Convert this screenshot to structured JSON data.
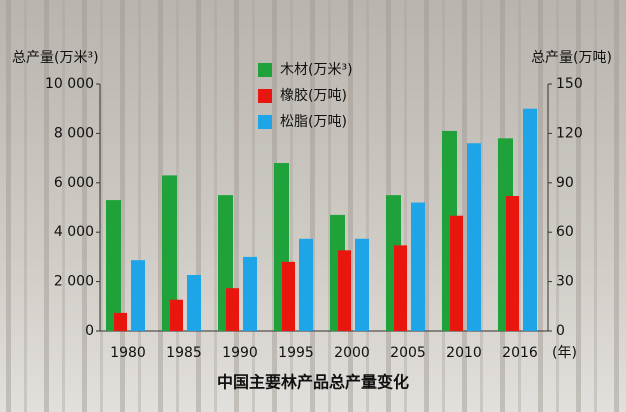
{
  "chart_data": {
    "type": "bar",
    "title": "中国主要林产品总产量变化",
    "y_label": "总产量(万米³)",
    "y2_label": "总产量(万吨)",
    "x_unit": "(年)",
    "categories": [
      "1980",
      "1985",
      "1990",
      "1995",
      "2000",
      "2005",
      "2010",
      "2016"
    ],
    "series": [
      {
        "name": "木材(万米³)",
        "color": "#1fa23a",
        "values": [
          5300,
          6300,
          5500,
          6800,
          4700,
          5500,
          8100,
          7800
        ]
      },
      {
        "name": "橡胶(万吨)",
        "color": "#e8160f",
        "axis": "y2",
        "values": [
          11,
          19,
          26,
          42,
          49,
          52,
          70,
          82
        ]
      },
      {
        "name": "松脂(万吨)",
        "color": "#1ea5e8",
        "axis": "y2",
        "values": [
          43,
          34,
          45,
          56,
          56,
          78,
          114,
          135
        ]
      }
    ],
    "ylim": [
      0,
      10000
    ],
    "yticks": [
      0,
      {
        "value": 2000,
        "label": "2 000"
      },
      {
        "value": 4000,
        "label": "4 000"
      },
      {
        "value": 6000,
        "label": "6 000"
      },
      {
        "value": 8000,
        "label": "8 000"
      },
      {
        "value": 10000,
        "label": "10 000"
      }
    ],
    "y2lim": [
      0,
      150
    ],
    "y2ticks": [
      0,
      30,
      60,
      90,
      120,
      150
    ]
  }
}
